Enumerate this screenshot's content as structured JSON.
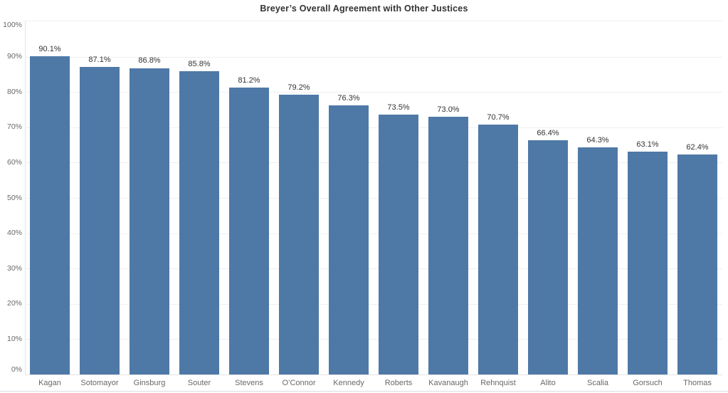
{
  "title": "Breyer’s Overall Agreement with Other Justices",
  "colors": {
    "bar": "#4e79a7",
    "title_text": "#323232",
    "value_label": "#333333",
    "axis_label": "#686868",
    "gridline": "#efefef",
    "axis_line": "#e4e4e4",
    "bottom_border": "#d8dde2"
  },
  "chart_data": {
    "type": "bar",
    "title": "Breyer’s Overall Agreement with Other Justices",
    "categories": [
      "Kagan",
      "Sotomayor",
      "Ginsburg",
      "Souter",
      "Stevens",
      "O’Connor",
      "Kennedy",
      "Roberts",
      "Kavanaugh",
      "Rehnquist",
      "Alito",
      "Scalia",
      "Gorsuch",
      "Thomas"
    ],
    "values": [
      90.1,
      87.1,
      86.8,
      85.8,
      81.2,
      79.2,
      76.3,
      73.5,
      73.0,
      70.7,
      66.4,
      64.3,
      63.1,
      62.4
    ],
    "value_labels": [
      "90.1%",
      "87.1%",
      "86.8%",
      "85.8%",
      "81.2%",
      "79.2%",
      "76.3%",
      "73.5%",
      "73.0%",
      "70.7%",
      "66.4%",
      "64.3%",
      "63.1%",
      "62.4%"
    ],
    "xlabel": "",
    "ylabel": "",
    "ylim": [
      0,
      100
    ],
    "ytick_step": 10,
    "ytick_labels": [
      "0%",
      "10%",
      "20%",
      "30%",
      "40%",
      "50%",
      "60%",
      "70%",
      "80%",
      "90%",
      "100%"
    ],
    "grid": "horizontal",
    "legend": "none"
  }
}
